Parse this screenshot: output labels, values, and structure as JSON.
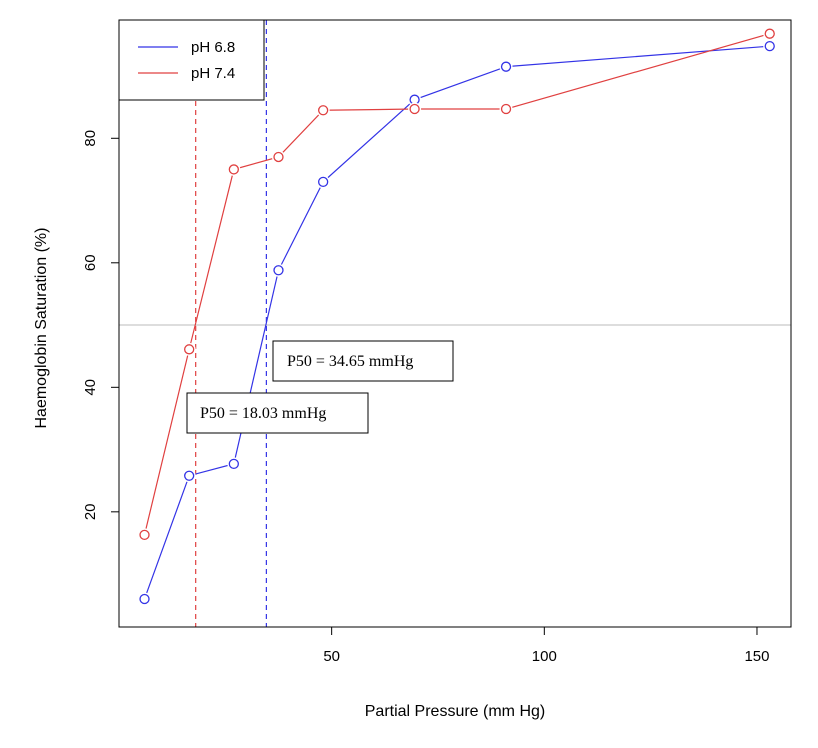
{
  "chart_data": {
    "type": "line",
    "title": "",
    "xlabel": "Partial Pressure (mm Hg)",
    "ylabel": "Haemoglobin Saturation (%)",
    "xlim": [
      0,
      158
    ],
    "ylim": [
      1.5,
      99
    ],
    "x_ticks": [
      50,
      100,
      150
    ],
    "y_ticks": [
      20,
      40,
      60,
      80
    ],
    "grid": false,
    "legend_position": "top-left",
    "series": [
      {
        "name": "pH 6.8",
        "color": "#3333e6",
        "x": [
          6,
          16.5,
          27,
          37.5,
          48,
          69.5,
          91,
          153
        ],
        "y": [
          6,
          25.8,
          27.7,
          58.8,
          73,
          86.2,
          91.5,
          94.8
        ]
      },
      {
        "name": "pH 7.4",
        "color": "#e04040",
        "x": [
          6,
          16.5,
          27,
          37.5,
          48,
          69.5,
          91,
          153
        ],
        "y": [
          16.3,
          46.1,
          75,
          77,
          84.5,
          84.7,
          84.7,
          96.8
        ]
      }
    ],
    "reference_lines": {
      "horizontal_y": 50,
      "horizontal_color": "#bbbbbb",
      "vertical": [
        {
          "x": 18.03,
          "color": "#e04040"
        },
        {
          "x": 34.65,
          "color": "#3333e6"
        }
      ]
    },
    "annotations": [
      {
        "text": "P50 = 34.65 mmHg",
        "anchor_x": 34.65,
        "anchor_y": 50
      },
      {
        "text": "P50 = 18.03 mmHg",
        "anchor_x": 18.03,
        "anchor_y": 40
      }
    ]
  }
}
